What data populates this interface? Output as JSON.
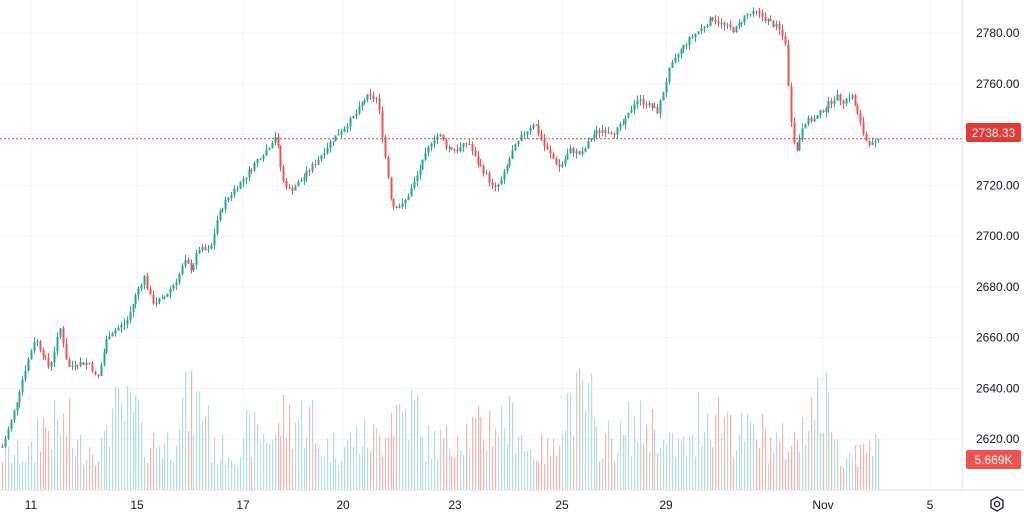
{
  "chart_data": {
    "type": "candlestick",
    "y_ticks": [
      "2780.00",
      "2760.00",
      "2740.00",
      "2720.00",
      "2700.00",
      "2680.00",
      "2660.00",
      "2640.00",
      "2620.00"
    ],
    "y_range": [
      2600,
      2793
    ],
    "x_ticks": [
      "11",
      "15",
      "17",
      "20",
      "23",
      "25",
      "29",
      "Nov",
      "5"
    ],
    "last_price": 2738.33,
    "last_price_label": "2738.33",
    "last_volume_label": "5.669K",
    "up_color": "#26a69a",
    "down_color": "#ef5350",
    "price_line_color": "#e53935",
    "price_path": [
      [
        0,
        2617
      ],
      [
        0.03,
        2630
      ],
      [
        0.06,
        2646
      ],
      [
        0.09,
        2660
      ],
      [
        0.11,
        2654
      ],
      [
        0.13,
        2648
      ],
      [
        0.16,
        2664
      ],
      [
        0.18,
        2648
      ],
      [
        0.2,
        2650
      ],
      [
        0.24,
        2650
      ],
      [
        0.26,
        2643
      ],
      [
        0.29,
        2661
      ],
      [
        0.31,
        2663
      ],
      [
        0.34,
        2666
      ],
      [
        0.37,
        2678
      ],
      [
        0.39,
        2684
      ],
      [
        0.41,
        2674
      ],
      [
        0.44,
        2675
      ],
      [
        0.48,
        2683
      ],
      [
        0.5,
        2690
      ],
      [
        0.52,
        2687
      ],
      [
        0.54,
        2695
      ],
      [
        0.57,
        2694
      ],
      [
        0.59,
        2707
      ],
      [
        0.61,
        2713
      ],
      [
        0.64,
        2719
      ],
      [
        0.67,
        2724
      ],
      [
        0.7,
        2730
      ],
      [
        0.73,
        2735
      ],
      [
        0.75,
        2740
      ],
      [
        0.77,
        2722
      ],
      [
        0.79,
        2718
      ],
      [
        0.82,
        2722
      ],
      [
        0.86,
        2729
      ],
      [
        0.9,
        2737
      ],
      [
        0.94,
        2743
      ],
      [
        0.97,
        2748
      ],
      [
        1.0,
        2755
      ],
      [
        1.03,
        2754
      ],
      [
        1.05,
        2732
      ],
      [
        1.07,
        2712
      ],
      [
        1.1,
        2712
      ],
      [
        1.13,
        2721
      ],
      [
        1.16,
        2731
      ],
      [
        1.18,
        2738
      ],
      [
        1.2,
        2740
      ],
      [
        1.22,
        2735
      ],
      [
        1.25,
        2734
      ],
      [
        1.28,
        2737
      ],
      [
        1.3,
        2730
      ],
      [
        1.33,
        2724
      ],
      [
        1.35,
        2718
      ],
      [
        1.37,
        2722
      ],
      [
        1.4,
        2733
      ],
      [
        1.43,
        2740
      ],
      [
        1.46,
        2745
      ],
      [
        1.49,
        2735
      ],
      [
        1.53,
        2727
      ],
      [
        1.56,
        2734
      ],
      [
        1.59,
        2732
      ],
      [
        1.62,
        2740
      ],
      [
        1.65,
        2742
      ],
      [
        1.68,
        2741
      ],
      [
        1.71,
        2745
      ],
      [
        1.74,
        2754
      ],
      [
        1.77,
        2752
      ],
      [
        1.8,
        2749
      ],
      [
        1.83,
        2765
      ],
      [
        1.86,
        2773
      ],
      [
        1.89,
        2778
      ],
      [
        1.92,
        2782
      ],
      [
        1.95,
        2786
      ],
      [
        1.98,
        2783
      ],
      [
        2.01,
        2781
      ],
      [
        2.04,
        2787
      ],
      [
        2.07,
        2788
      ],
      [
        2.1,
        2785
      ],
      [
        2.13,
        2782
      ],
      [
        2.15,
        2776
      ],
      [
        2.16,
        2752
      ],
      [
        2.17,
        2740
      ],
      [
        2.18,
        2733
      ],
      [
        2.2,
        2745
      ],
      [
        2.23,
        2746
      ],
      [
        2.26,
        2751
      ],
      [
        2.29,
        2755
      ],
      [
        2.31,
        2753
      ],
      [
        2.33,
        2756
      ],
      [
        2.35,
        2747
      ],
      [
        2.37,
        2738
      ],
      [
        2.39,
        2736
      ],
      [
        2.41,
        2738
      ]
    ],
    "volume_profile": [
      0.35,
      0.7,
      0.45,
      0.85,
      0.5,
      0.95,
      0.4,
      0.6,
      0.8,
      0.45,
      0.55,
      0.9,
      0.5,
      0.65,
      0.75,
      0.4,
      1.0,
      0.55,
      0.7,
      0.45,
      0.85,
      0.6,
      0.5,
      0.95,
      0.4,
      0.7
    ]
  }
}
